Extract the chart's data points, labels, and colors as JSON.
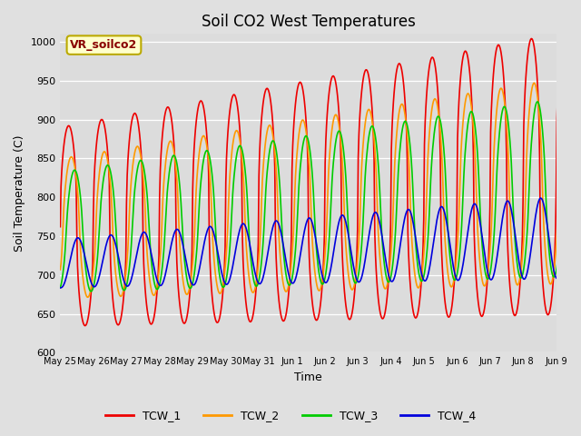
{
  "title": "Soil CO2 West Temperatures",
  "xlabel": "Time",
  "ylabel": "Soil Temperature (C)",
  "ylim": [
    600,
    1010
  ],
  "yticks": [
    600,
    650,
    700,
    750,
    800,
    850,
    900,
    950,
    1000
  ],
  "fig_bg": "#e0e0e0",
  "plot_bg": "#dcdcdc",
  "grid_color": "#ffffff",
  "series_colors": [
    "#ee0000",
    "#ff9900",
    "#00cc00",
    "#0000dd"
  ],
  "series_labels": [
    "TCW_1",
    "TCW_2",
    "TCW_3",
    "TCW_4"
  ],
  "x_tick_labels": [
    "May 25",
    "May 26",
    "May 27",
    "May 28",
    "May 29",
    "May 30",
    "May 31",
    "Jun 1",
    "Jun 2",
    "Jun 3",
    "Jun 4",
    "Jun 5",
    "Jun 6",
    "Jun 7",
    "Jun 8",
    "Jun 9"
  ],
  "annotation_text": "VR_soilco2",
  "annotation_fg": "#880000",
  "annotation_bg": "#ffffcc",
  "annotation_edge": "#bbaa00",
  "n_days": 16,
  "ppd": 48,
  "linewidth": 1.2
}
